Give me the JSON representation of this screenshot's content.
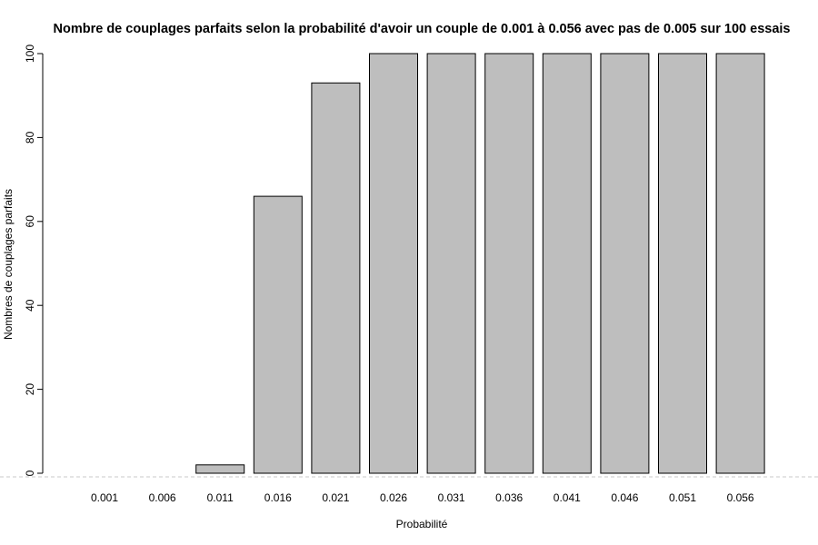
{
  "chart_data": {
    "type": "bar",
    "title": "Nombre de couplages parfaits selon la probabilité d'avoir un couple de 0.001 à 0.056 avec pas de 0.005 sur 100 essais",
    "xlabel": "Probabilité",
    "ylabel": "Nombres de couplages parfaits",
    "categories": [
      "0.001",
      "0.006",
      "0.011",
      "0.016",
      "0.021",
      "0.026",
      "0.031",
      "0.036",
      "0.041",
      "0.046",
      "0.051",
      "0.056"
    ],
    "values": [
      0,
      0,
      2,
      66,
      93,
      100,
      100,
      100,
      100,
      100,
      100,
      100
    ],
    "ylim": [
      0,
      100
    ],
    "yticks": [
      0,
      20,
      40,
      60,
      80,
      100
    ],
    "bar_color": "#bebebe",
    "edge_color": "#000000",
    "grid": false,
    "legend": false
  }
}
